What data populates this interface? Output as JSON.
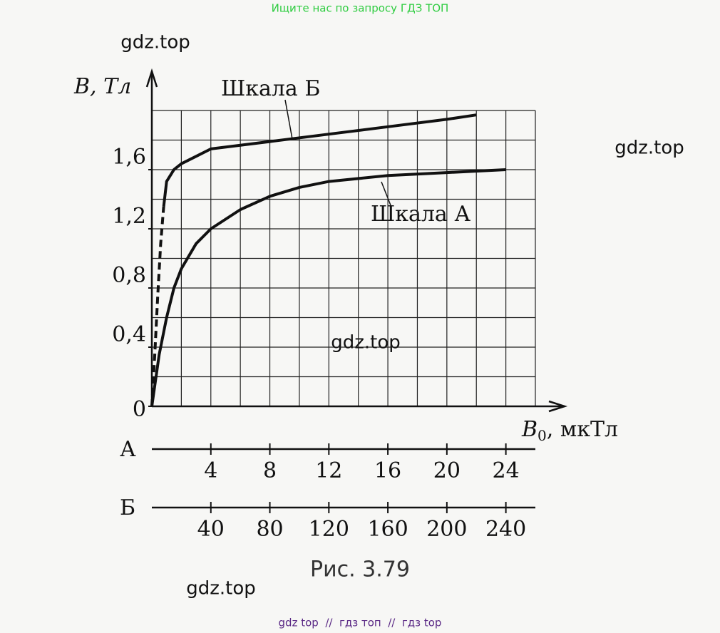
{
  "header": {
    "search_note": "Ищите нас по запросу ГДЗ ТОП"
  },
  "watermarks": [
    "gdz.top",
    "gdz.top",
    "gdz.top",
    "gdz.top"
  ],
  "footer": {
    "links": "gdz top  //  гдз топ  //  гдз top"
  },
  "caption": "Рис. 3.79",
  "chart_data": {
    "type": "line",
    "y_label": "B, Тл",
    "x_label": {
      "main": "B",
      "sub": "0",
      "unit": ", мкТл"
    },
    "x_row_label": "А",
    "x2_row_label": "Б",
    "xlim": [
      0,
      26
    ],
    "x2lim": [
      0,
      260
    ],
    "ylim": [
      0,
      2
    ],
    "xticks": [
      4,
      8,
      12,
      16,
      20,
      24
    ],
    "x2ticks": [
      40,
      80,
      120,
      160,
      200,
      240
    ],
    "yticks": [
      {
        "value": 0,
        "label": "0"
      },
      {
        "value": 0.4,
        "label": "0,4"
      },
      {
        "value": 0.8,
        "label": "0,8"
      },
      {
        "value": 1.2,
        "label": "1,2"
      },
      {
        "value": 1.6,
        "label": "1,6"
      }
    ],
    "grid": true,
    "grid_step_x": 2,
    "grid_step_y": 0.2,
    "series": [
      {
        "name": "Шкала А",
        "color": "#111",
        "linestyle": "solid",
        "x": [
          0,
          0.5,
          1,
          1.5,
          2,
          3,
          4,
          6,
          8,
          10,
          12,
          16,
          20,
          24
        ],
        "values": [
          0,
          0.35,
          0.6,
          0.8,
          0.93,
          1.1,
          1.2,
          1.33,
          1.42,
          1.48,
          1.52,
          1.56,
          1.58,
          1.6
        ]
      },
      {
        "name": "Шкала Б",
        "color": "#111",
        "linestyle": "solid",
        "axis": "x2",
        "x": [
          8,
          10,
          15,
          20,
          30,
          40,
          80,
          120,
          160,
          200,
          220
        ],
        "values": [
          1.35,
          1.52,
          1.6,
          1.64,
          1.69,
          1.74,
          1.79,
          1.84,
          1.89,
          1.94,
          1.97
        ]
      },
      {
        "color": "#111",
        "linestyle": "dashed",
        "axis": "x2",
        "x": [
          0,
          2,
          4,
          6,
          8
        ],
        "values": [
          0,
          0.35,
          0.75,
          1.1,
          1.35
        ]
      }
    ]
  }
}
